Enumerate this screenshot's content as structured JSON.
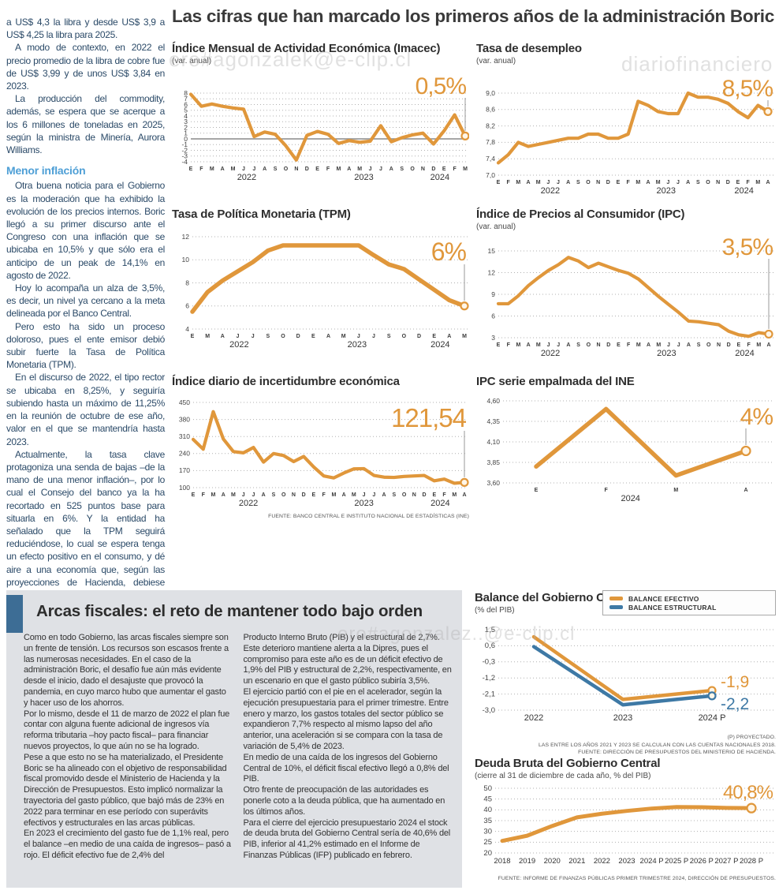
{
  "headline": "Las cifras que han marcado los primeros años de la administración Boric",
  "colors": {
    "orange": "#E0973B",
    "blue": "#3E79A5",
    "grid": "#b0b0b0",
    "zero_line": "#8a8a8a",
    "tick_text": "#444444",
    "accent_bar": "#3d6d95",
    "box_bg": "#dfe1e5",
    "subhead_blue": "#4e9fd6"
  },
  "watermarks": {
    "top_left": "ero#agonzalek@e-clip.cl",
    "top_right": "diariofinanciero",
    "bottom": "ero#agonzalez..@e-clip.cl"
  },
  "article": {
    "paragraphs": [
      "a US$ 4,3 la libra y desde US$ 3,9 a US$ 4,25 la libra para 2025.",
      "A modo de contexto, en 2022 el precio promedio de la libra de cobre fue de US$ 3,99 y de unos US$ 3,84 en 2023.",
      "La producción del commodity, además, se espera que se acerque a los 6 millones de toneladas en 2025, según la ministra de Minería, Aurora Williams.",
      "Otra buena noticia para el Gobierno es la moderación que ha exhibido la evolución de los precios internos. Boric llegó a su primer discurso ante el Congreso con una inflación que se ubicaba en 10,5% y que sólo era el anticipo de un peak de 14,1% en agosto de 2022.",
      "Hoy lo acompaña un alza de 3,5%, es decir, un nivel ya cercano a la meta delineada por el Banco Central.",
      "Pero esto ha sido un proceso doloroso, pues el ente emisor debió subir fuerte la Tasa de Política Monetaria (TPM).",
      "En el discurso de 2022, el tipo rector se ubicaba en 8,25%, y seguiría subiendo hasta un máximo de 11,25% en la reunión de octubre de ese año, valor en el que se mantendría hasta 2023.",
      "Actualmente, la tasa clave protagoniza una senda de bajas –de la mano de una menor inflación–, por lo cual el Consejo del banco ya la ha recortado en 525 puntos base para situarla en 6%. Y la entidad ha señalado que la TPM seguirá reduciéndose, lo cual se espera tenga un efecto positivo en el consumo, y dé aire a una economía que, según las proyecciones de Hacienda, debiese crecer un 2,7%."
    ],
    "subhead": "Menor inflación"
  },
  "chart_data": [
    {
      "id": "imacec",
      "type": "line",
      "title": "Índice Mensual de Actividad Económica (Imacec)",
      "subtitle": "(var. anual)",
      "value_label": "0,5%",
      "zero_line": true,
      "y_tick_labels": [
        "8",
        "7",
        "6",
        "5",
        "4",
        "3",
        "2",
        "1",
        "0",
        "-1",
        "-2",
        "-3",
        "-4"
      ],
      "y_tick_values": [
        8,
        7,
        6,
        5,
        4,
        3,
        2,
        1,
        0,
        -1,
        -2,
        -3,
        -4
      ],
      "x_labels": [
        "E",
        "F",
        "M",
        "A",
        "M",
        "J",
        "J",
        "A",
        "S",
        "O",
        "N",
        "D",
        "E",
        "F",
        "M",
        "A",
        "M",
        "J",
        "J",
        "A",
        "S",
        "O",
        "N",
        "D",
        "E",
        "F",
        "M"
      ],
      "year_labels": [
        {
          "t": "2022",
          "i": 5.3
        },
        {
          "t": "2023",
          "i": 16.4
        },
        {
          "t": "2024",
          "i": 23.6
        }
      ],
      "series": [
        {
          "name": "Imacec",
          "color": "orange",
          "values": [
            7.8,
            5.7,
            6.1,
            5.7,
            5.4,
            5.2,
            0.4,
            1.2,
            0.8,
            -1.2,
            -3.7,
            0.6,
            1.3,
            0.8,
            -0.8,
            -0.3,
            -0.6,
            -0.4,
            2.3,
            -0.5,
            0.2,
            0.7,
            1.0,
            -0.9,
            1.4,
            4.2,
            0.5
          ]
        }
      ]
    },
    {
      "id": "desempleo",
      "type": "line",
      "title": "Tasa de desempleo",
      "subtitle": "(var. anual)",
      "value_label": "8,5%",
      "y_tick_labels": [
        "9,0",
        "8,6",
        "8,2",
        "7,8",
        "7,4",
        "7,0"
      ],
      "y_tick_values": [
        9.0,
        8.6,
        8.2,
        7.8,
        7.4,
        7.0
      ],
      "x_labels": [
        "E",
        "F",
        "M",
        "A",
        "M",
        "J",
        "J",
        "A",
        "S",
        "O",
        "N",
        "D",
        "E",
        "F",
        "M",
        "A",
        "M",
        "J",
        "J",
        "A",
        "S",
        "O",
        "N",
        "D",
        "E",
        "F",
        "M",
        "A"
      ],
      "year_labels": [
        {
          "t": "2022",
          "i": 5.2
        },
        {
          "t": "2023",
          "i": 16.8
        },
        {
          "t": "2024",
          "i": 24.6
        }
      ],
      "series": [
        {
          "name": "Tasa de desempleo",
          "color": "orange",
          "values": [
            7.3,
            7.5,
            7.8,
            7.7,
            7.75,
            7.8,
            7.85,
            7.9,
            7.9,
            8.0,
            8.0,
            7.9,
            7.9,
            8.0,
            8.8,
            8.7,
            8.55,
            8.5,
            8.5,
            9.0,
            8.9,
            8.9,
            8.85,
            8.75,
            8.55,
            8.4,
            8.7,
            8.55
          ]
        }
      ]
    },
    {
      "id": "tpm",
      "type": "line",
      "title": "Tasa de Política Monetaria (TPM)",
      "value_label": "6%",
      "y_tick_labels": [
        "12",
        "10",
        "8",
        "6",
        "4"
      ],
      "y_tick_values": [
        12,
        10,
        8,
        6,
        4
      ],
      "x_labels": [
        "E",
        "M",
        "A",
        "J",
        "J",
        "S",
        "O",
        "D",
        "E",
        "A",
        "M",
        "J",
        "J",
        "S",
        "O",
        "D",
        "E",
        "A",
        "M"
      ],
      "year_labels": [
        {
          "t": "2022",
          "i": 3.1
        },
        {
          "t": "2023",
          "i": 10.9
        },
        {
          "t": "2024",
          "i": 16.4
        }
      ],
      "series": [
        {
          "name": "TPM",
          "color": "orange",
          "values": [
            5.5,
            7.2,
            8.2,
            9.0,
            9.8,
            10.8,
            11.25,
            11.25,
            11.25,
            11.25,
            11.25,
            11.25,
            10.4,
            9.6,
            9.2,
            8.3,
            7.4,
            6.5,
            6.0
          ]
        }
      ]
    },
    {
      "id": "ipc",
      "type": "line",
      "title": "Índice de Precios al Consumidor (IPC)",
      "subtitle": "(var. anual)",
      "value_label": "3,5%",
      "y_tick_labels": [
        "15",
        "12",
        "9",
        "6",
        "3"
      ],
      "y_tick_values": [
        15,
        12,
        9,
        6,
        3
      ],
      "x_labels": [
        "E",
        "F",
        "M",
        "A",
        "M",
        "J",
        "J",
        "A",
        "S",
        "O",
        "N",
        "D",
        "E",
        "F",
        "M",
        "A",
        "M",
        "J",
        "J",
        "A",
        "S",
        "O",
        "N",
        "D",
        "E",
        "F",
        "M",
        "A"
      ],
      "year_labels": [
        {
          "t": "2022",
          "i": 5.2
        },
        {
          "t": "2023",
          "i": 16.8
        },
        {
          "t": "2024",
          "i": 24.6
        }
      ],
      "series": [
        {
          "name": "IPC",
          "color": "orange",
          "values": [
            7.7,
            7.7,
            8.8,
            10.2,
            11.3,
            12.3,
            13.1,
            14.1,
            13.6,
            12.7,
            13.3,
            12.8,
            12.3,
            11.9,
            11.1,
            9.9,
            8.7,
            7.6,
            6.5,
            5.3,
            5.2,
            5.0,
            4.8,
            3.9,
            3.4,
            3.2,
            3.7,
            3.5
          ]
        }
      ]
    },
    {
      "id": "incertidumbre",
      "type": "line",
      "title": "Índice diario de incertidumbre económica",
      "value_label": "121,54",
      "source": "FUENTE: BANCO CENTRAL E INSTITUTO NACIONAL DE ESTADÍSTICAS (INE)",
      "y_tick_labels": [
        "450",
        "380",
        "310",
        "240",
        "170",
        "100"
      ],
      "y_tick_values": [
        450,
        380,
        310,
        240,
        170,
        100
      ],
      "x_labels": [
        "E",
        "F",
        "M",
        "A",
        "M",
        "J",
        "J",
        "A",
        "S",
        "O",
        "N",
        "D",
        "E",
        "F",
        "M",
        "A",
        "M",
        "J",
        "J",
        "A",
        "S",
        "O",
        "N",
        "D",
        "E",
        "F",
        "M",
        "A"
      ],
      "year_labels": [
        {
          "t": "2022",
          "i": 5.5
        },
        {
          "t": "2023",
          "i": 17.0
        },
        {
          "t": "2024",
          "i": 24.6
        }
      ],
      "series": [
        {
          "name": "Incertidumbre económica",
          "color": "orange",
          "values": [
            298,
            258,
            412,
            300,
            248,
            243,
            265,
            205,
            240,
            232,
            207,
            228,
            185,
            148,
            140,
            160,
            177,
            178,
            150,
            143,
            142,
            146,
            148,
            150,
            128,
            135,
            118,
            121.54
          ]
        }
      ]
    },
    {
      "id": "ipcine",
      "type": "line",
      "title": "IPC serie empalmada del INE",
      "value_label": "4%",
      "y_tick_labels": [
        "4,60",
        "4,35",
        "4,10",
        "3,85",
        "3,60"
      ],
      "y_tick_values": [
        4.6,
        4.35,
        4.1,
        3.85,
        3.6
      ],
      "x_labels": [
        "E",
        "F",
        "M",
        "A"
      ],
      "year_labels": [
        {
          "t": "2024",
          "i": 1.35
        }
      ],
      "series": [
        {
          "name": "IPC serie empalmada",
          "color": "orange",
          "values": [
            3.8,
            4.5,
            3.69,
            3.99
          ]
        }
      ]
    },
    {
      "id": "balance",
      "type": "line",
      "title": "Balance del Gobierno Central Total",
      "subtitle": "(% del PIB)",
      "legend": [
        "BALANCE EFECTIVO",
        "BALANCE ESTRUCTURAL"
      ],
      "notes": [
        "(P) PROYECTADO.",
        "LAS ENTRE LOS AÑOS 2021 Y 2023 SE CALCULAN CON LAS CUENTAS NACIONALES 2018.",
        "FUENTE: DIRECCIÓN DE PRESUPUESTOS DEL MINISTERIO DE HACIENDA."
      ],
      "y_tick_labels": [
        "1,5",
        "0,6",
        "-0,3",
        "-1,2",
        "-2,1",
        "-3,0"
      ],
      "y_tick_values": [
        1.5,
        0.6,
        -0.3,
        -1.2,
        -2.1,
        -3.0
      ],
      "x_labels": [
        "2022",
        "2023",
        "2024 P"
      ],
      "series": [
        {
          "name": "Balance efectivo",
          "color": "orange",
          "end_label": "-1,9",
          "values": [
            1.1,
            -2.4,
            -1.9
          ]
        },
        {
          "name": "Balance estructural",
          "color": "blue",
          "end_label": "-2,2",
          "values": [
            0.55,
            -2.7,
            -2.2
          ]
        }
      ]
    },
    {
      "id": "deuda",
      "type": "line",
      "title": "Deuda Bruta del Gobierno Central",
      "subtitle": "(cierre al 31 de diciembre de cada año, % del PIB)",
      "value_label": "40,8%",
      "source": "FUENTE: INFORME DE FINANZAS PÚBLICAS PRIMER TRIMESTRE 2024, DIRECCIÓN DE PRESUPUESTOS.",
      "y_tick_labels": [
        "50",
        "45",
        "40",
        "35",
        "30",
        "25",
        "20"
      ],
      "y_tick_values": [
        50,
        45,
        40,
        35,
        30,
        25,
        20
      ],
      "x_labels": [
        "2018",
        "2019",
        "2020",
        "2021",
        "2022",
        "2023",
        "2024 P",
        "2025 P",
        "2026 P",
        "2027 P",
        "2028 P"
      ],
      "series": [
        {
          "name": "Deuda bruta",
          "color": "orange",
          "values": [
            25.6,
            28.0,
            32.5,
            36.5,
            38.2,
            39.5,
            40.6,
            41.3,
            41.2,
            40.9,
            40.8
          ]
        }
      ]
    }
  ],
  "fiscal_box": {
    "title": "Arcas fiscales: el reto de mantener todo bajo orden",
    "col1": [
      "Como en todo Gobierno, las arcas fiscales siempre son un frente de tensión. Los recursos son escasos frente a las numerosas necesidades. En el caso de la administración Boric, el desafío fue aún más evidente desde el inicio, dado el desajuste que provocó la pandemia, en cuyo marco hubo que aumentar el gasto y hacer uso de los ahorros.",
      "Por lo mismo, desde el 11 de marzo de 2022 el plan fue contar con alguna fuente adicional de ingresos vía reforma tributaria –hoy pacto fiscal– para financiar nuevos proyectos, lo que aún no se ha logrado.",
      "Pese a que esto no se ha materializado, el Presidente Boric se ha alineado con el objetivo de responsabilidad fiscal promovido desde el Ministerio de Hacienda y la Dirección de Presupuestos. Esto implicó normalizar la trayectoria del gasto público, que bajó más de 23% en 2022 para terminar en ese período con superávits efectivos y estructurales en las arcas públicas.",
      "En 2023 el crecimiento del gasto fue de 1,1% real, pero el balance –en medio de una caída de ingresos–  pasó a rojo. El déficit efectivo fue de 2,4% del"
    ],
    "col2": [
      "Producto Interno Bruto (PIB) y el estructural de 2,7%. Este deterioro mantiene alerta a la Dipres, pues el compromiso para este año es de un déficit efectivo de 1,9% del PIB y estructural de 2,2%, respectivamente, en un escenario en que el gasto público subiría 3,5%.",
      "El ejercicio partió con el pie en el acelerador, según la ejecución presupuestaria para el primer trimestre. Entre enero y marzo, los gastos totales del sector público se expandieron 7,7% respecto al mismo lapso del año anterior, una aceleración si se compara con la tasa de variación de 5,4% de 2023.",
      "En medio de una caída de los ingresos del Gobierno Central de 10%, el déficit fiscal efectivo llegó a 0,8% del PIB.",
      "Otro frente de preocupación de las autoridades es ponerle coto a la deuda pública, que ha aumentado en los últimos años.",
      "Para el cierre del ejercicio presupuestario 2024 el stock de deuda bruta del Gobierno Central sería de 40,6% del PIB, inferior al 41,2% estimado en el Informe de Finanzas Públicas (IFP) publicado en febrero."
    ]
  }
}
